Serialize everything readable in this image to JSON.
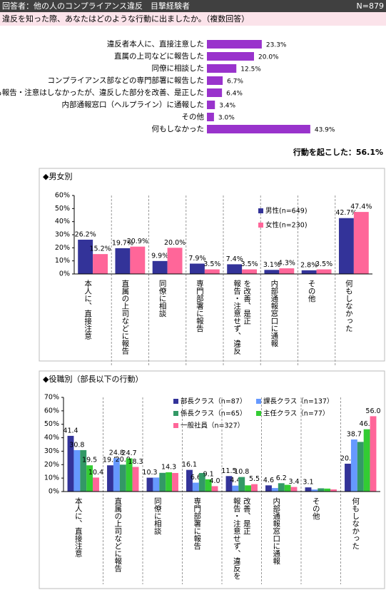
{
  "header": {
    "title": "回答者：他の人のコンプライアンス違反　目撃経験者",
    "n": "N=879"
  },
  "question": "違反を知った際、あなたはどのような行動に出ましたか。（複数回答）",
  "chart_data": [
    {
      "type": "hbar",
      "color": "#9933cc",
      "categories": [
        "違反者本人に、直接注意した",
        "直属の上司などに報告した",
        "同僚に相談した",
        "コンプライアンス部などの専門部署に報告した",
        "誰にも報告・注意はしなかったが、違反した部分を改善、是正した",
        "内部通報窓口（ヘルプライン）に通報した",
        "その他",
        "何もしなかった"
      ],
      "values": [
        23.3,
        20.0,
        12.5,
        6.7,
        6.4,
        3.4,
        3.0,
        43.9
      ],
      "value_labels": [
        "23.3%",
        "20.0%",
        "12.5%",
        "6.7%",
        "6.4%",
        "3.4%",
        "3.0%",
        "43.9%"
      ],
      "annotation": "行動を起こした：56.1%"
    },
    {
      "type": "bar",
      "title": "◆男女別",
      "categories": [
        "本人に、直接注意",
        "直属の上司などに報告",
        "同僚に相談",
        "専門部署に報告",
        "報告・注意せず、違反を改善、是正",
        "内部通報窓口に通報",
        "その他",
        "何もしなかった"
      ],
      "series": [
        {
          "name": "男性(n=649)",
          "color": "#333399",
          "values": [
            26.2,
            19.7,
            9.9,
            7.9,
            7.4,
            3.1,
            2.8,
            42.7
          ],
          "value_labels": [
            "26.2%",
            "19.7%",
            "9.9%",
            "7.9%",
            "7.4%",
            "3.1%",
            "2.8%",
            "42.7%"
          ]
        },
        {
          "name": "女性(n=230)",
          "color": "#ff6699",
          "values": [
            15.2,
            20.9,
            20.0,
            3.5,
            3.5,
            4.3,
            3.5,
            47.4
          ],
          "value_labels": [
            "15.2%",
            "20.9%",
            "20.0%",
            "3.5%",
            "3.5%",
            "4.3%",
            "3.5%",
            "47.4%"
          ]
        }
      ],
      "ylim": [
        0,
        60
      ],
      "yticks": [
        {
          "value": 0,
          "label": "0%"
        },
        {
          "value": 10,
          "label": "10%"
        },
        {
          "value": 20,
          "label": "20%"
        },
        {
          "value": 30,
          "label": "30%"
        },
        {
          "value": 40,
          "label": "40%"
        },
        {
          "value": 50,
          "label": "50%"
        },
        {
          "value": 60,
          "label": "60%"
        }
      ]
    },
    {
      "type": "bar",
      "title": "◆役職別（部長以下の行動）",
      "categories": [
        "本人に、直接注意",
        "直属の上司などに報告",
        "同僚に相談",
        "専門部署に報告",
        "報告・注意せず、違反を改善、是正",
        "内部通報窓口に通報",
        "その他",
        "何もしなかった"
      ],
      "series": [
        {
          "name": "部長クラス（n=87）",
          "color": "#333399",
          "values": [
            41.4,
            19.5,
            10.3,
            16.1,
            11.5,
            4.6,
            3.1,
            20.7
          ],
          "value_labels": [
            "41.4",
            "19.5",
            "10.3",
            "16.1",
            "11.5",
            "4.6",
            "3.1",
            "20.7"
          ]
        },
        {
          "name": "課長クラス（n=137）",
          "color": "#6699ff",
          "values": [
            30.8,
            24.8,
            10.4,
            6.6,
            4.4,
            2.6,
            1.5,
            38.7
          ],
          "value_labels": [
            "30.8",
            "24.8",
            null,
            "6.6",
            "4.4",
            null,
            null,
            "38.7"
          ]
        },
        {
          "name": "係長クラス（n=65）",
          "color": "#339966",
          "values": [
            30.8,
            20.0,
            13.9,
            13.8,
            10.8,
            6.2,
            2.4,
            36.9
          ],
          "value_labels": [
            null,
            "20.0",
            null,
            null,
            "10.8",
            "6.2",
            null,
            null
          ]
        },
        {
          "name": "主任クラス（n=77）",
          "color": "#33cc33",
          "values": [
            19.5,
            24.7,
            14.3,
            9.1,
            4.6,
            5.0,
            2.2,
            46.3
          ],
          "value_labels": [
            "19.5",
            "24.7",
            "14.3",
            "9.1",
            null,
            null,
            null,
            "46.3"
          ]
        },
        {
          "name": "一般社員（n=327）",
          "color": "#ff6699",
          "values": [
            10.4,
            18.3,
            13.8,
            4.0,
            5.5,
            3.4,
            1.6,
            56
          ],
          "value_labels": [
            "10.4",
            "18.3",
            null,
            "4.0",
            "5.5",
            "3.4",
            null,
            "56.0"
          ]
        }
      ],
      "ylim": [
        0,
        70
      ],
      "yticks": [
        {
          "value": 0,
          "label": "0%"
        },
        {
          "value": 10,
          "label": "10%"
        },
        {
          "value": 20,
          "label": "20%"
        },
        {
          "value": 30,
          "label": "30%"
        },
        {
          "value": 40,
          "label": "40%"
        },
        {
          "value": 50,
          "label": "50%"
        },
        {
          "value": 60,
          "label": "60%"
        },
        {
          "value": 70,
          "label": "70%"
        }
      ]
    }
  ]
}
